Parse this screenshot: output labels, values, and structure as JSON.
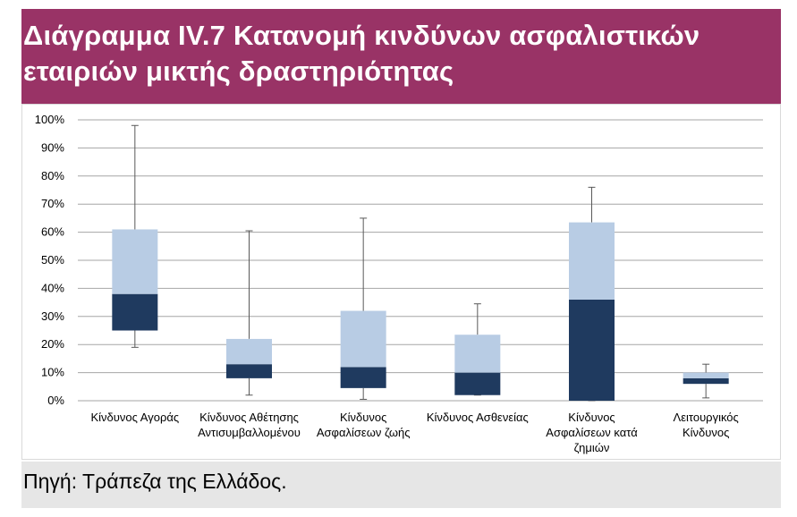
{
  "title": {
    "line1": "Διάγραμμα IV.7 Κατανομή κινδύνων ασφαλιστικών",
    "line2": "εταιριών μικτής δραστηριότητας"
  },
  "source": "Πηγή: Τράπεζα της Ελλάδος.",
  "colors": {
    "title_bg": "#993366",
    "box_lower": "#1f3a5f",
    "box_upper": "#b8cce4",
    "whisker": "#595959",
    "grid": "#a6a6a6"
  },
  "chart_data": {
    "type": "box",
    "title": "Διάγραμμα IV.7 Κατανομή κινδύνων ασφαλιστικών εταιριών μικτής δραστηριότητας",
    "xlabel": "",
    "ylabel": "",
    "ylim": [
      0,
      100
    ],
    "yticks": [
      0,
      10,
      20,
      30,
      40,
      50,
      60,
      70,
      80,
      90,
      100
    ],
    "ytick_labels": [
      "0%",
      "10%",
      "20%",
      "30%",
      "40%",
      "50%",
      "60%",
      "70%",
      "80%",
      "90%",
      "100%"
    ],
    "grid": true,
    "categories": [
      [
        "Κίνδυνος Αγοράς"
      ],
      [
        "Κίνδυνος Αθέτησης",
        "Αντισυμβαλλομένου"
      ],
      [
        "Κίνδυνος",
        "Ασφαλίσεων ζωής"
      ],
      [
        "Κίνδυνος Ασθενείας"
      ],
      [
        "Κίνδυνος",
        "Ασφαλίσεων κατά",
        "ζημιών"
      ],
      [
        "Λειτουργικός",
        "Κίνδυνος"
      ]
    ],
    "series": [
      {
        "name": "min",
        "values": [
          19,
          2,
          0.5,
          2,
          0,
          1
        ]
      },
      {
        "name": "q1",
        "values": [
          25,
          8,
          4.5,
          2,
          0,
          6
        ]
      },
      {
        "name": "median",
        "values": [
          38,
          13,
          12,
          10,
          36,
          8
        ]
      },
      {
        "name": "q3",
        "values": [
          61,
          22,
          32,
          23.5,
          63.5,
          10
        ]
      },
      {
        "name": "max",
        "values": [
          98,
          60.5,
          65,
          34.5,
          76,
          13
        ]
      }
    ]
  }
}
